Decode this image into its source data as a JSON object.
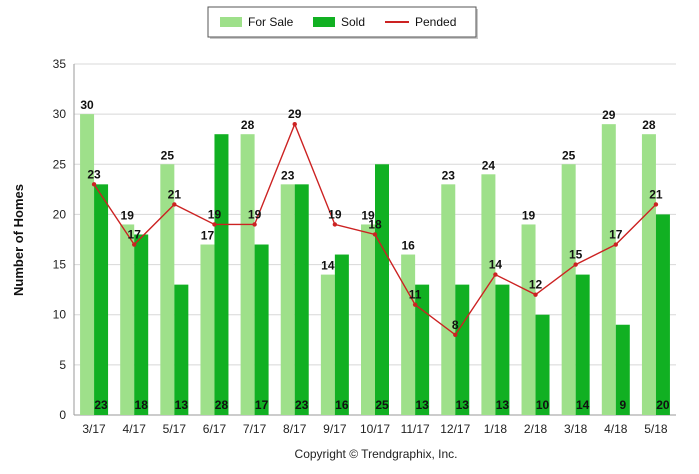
{
  "chart_data": {
    "type": "bar",
    "categories": [
      "3/17",
      "4/17",
      "5/17",
      "6/17",
      "7/17",
      "8/17",
      "9/17",
      "10/17",
      "11/17",
      "12/17",
      "1/18",
      "2/18",
      "3/18",
      "4/18",
      "5/18"
    ],
    "series": [
      {
        "name": "For Sale",
        "kind": "bar",
        "color": "#9ee08a",
        "values": [
          30,
          19,
          25,
          17,
          28,
          23,
          14,
          19,
          16,
          23,
          24,
          19,
          25,
          29,
          28
        ]
      },
      {
        "name": "Sold",
        "kind": "bar",
        "color": "#11b022",
        "values": [
          23,
          18,
          13,
          28,
          17,
          23,
          16,
          25,
          13,
          13,
          13,
          10,
          14,
          9,
          20
        ]
      },
      {
        "name": "Pended",
        "kind": "line",
        "color": "#cc2222",
        "values": [
          23,
          17,
          21,
          19,
          19,
          29,
          19,
          18,
          11,
          8,
          14,
          12,
          15,
          17,
          21
        ]
      }
    ],
    "xlabel": "",
    "ylabel": "Number of Homes",
    "ylim": [
      0,
      35
    ],
    "yticks": [
      0,
      5,
      10,
      15,
      20,
      25,
      30,
      35
    ],
    "grid": true,
    "legend_position": "top-center"
  },
  "footer": {
    "copyright": "Copyright © Trendgraphix, Inc."
  }
}
